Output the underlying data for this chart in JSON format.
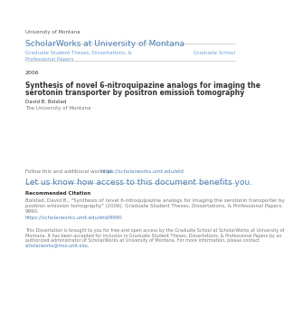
{
  "bg_color": "#ffffff",
  "page_bg": "#ffffff",
  "header_small": "University of Montana",
  "header_large": "ScholarWorks at University of Montana",
  "header_large_color": "#4a7fb5",
  "line1_left": "Graduate Student Theses, Dissertations, &",
  "line1_left2": "Professional Papers",
  "line1_right": "Graduate School",
  "line1_color": "#6a9fd8",
  "year": "2006",
  "title_line1": "Synthesis of novel 6-nitroquipazine analogs for imaging the",
  "title_line2": "serotonin transporter by positron emission tomography",
  "author": "David B. Bolstad",
  "institution": "The University of Montana",
  "follow_text": "Follow this and additional works at: ",
  "follow_link": "https://scholarworks.umt.edu/etd",
  "cta_text": "Let us know how access to this document benefits you.",
  "cta_color": "#4a7fb5",
  "rec_citation_bold": "Recommended Citation",
  "citation_line1": "Bolstad, David B., \"Synthesis of novel 6-nitroquipazine analogs for imaging the serotonin transporter by",
  "citation_line2": "positron emission tomography\" (2006). Graduate Student Theses, Dissertations, & Professional Papers.",
  "citation_line3": "9990.",
  "citation_link": "https://scholarworks.umt.edu/etd/9990",
  "disclaimer_line1": "This Dissertation is brought to you for free and open access by the Graduate School at ScholarWorks at University of",
  "disclaimer_line2": "Montana. It has been accepted for inclusion in Graduate Student Theses, Dissertations, & Professional Papers by an",
  "disclaimer_line3": "authorized administrator of ScholarWorks at University of Montana. For more information, please contact",
  "disclaimer_line4": "scholarworks@mso.umt.edu.",
  "disclaimer_link": "scholarworks@mso.umt.edu.",
  "separator_color": "#cccccc",
  "text_color": "#777777",
  "dark_text": "#333333",
  "header_small_color": "#555555"
}
